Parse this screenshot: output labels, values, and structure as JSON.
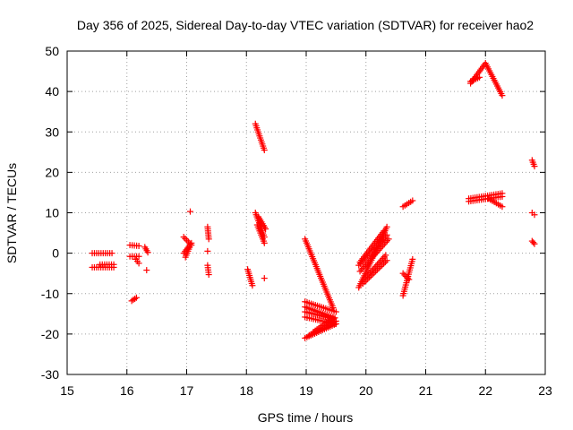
{
  "chart_data": {
    "type": "scatter",
    "title": "Day 356 of 2025, Sidereal Day-to-day VTEC variation (SDTVAR) for receiver hao2",
    "xlabel": "GPS time / hours",
    "ylabel": "SDTVAR / TECUs",
    "xlim": [
      15,
      23
    ],
    "ylim": [
      -30,
      50
    ],
    "xticks": [
      "15",
      "16",
      "17",
      "18",
      "19",
      "20",
      "21",
      "22",
      "23"
    ],
    "yticks": [
      "50",
      "40",
      "30",
      "20",
      "10",
      "0",
      "-10",
      "-20",
      "-30"
    ],
    "grid": true,
    "marker": "+",
    "color": "#ff0000",
    "segments": [
      {
        "x": [
          15.42,
          15.75
        ],
        "y": [
          0.0,
          0.0
        ]
      },
      {
        "x": [
          15.42,
          15.78
        ],
        "y": [
          -3.5,
          -3.5
        ]
      },
      {
        "x": [
          15.55,
          15.78
        ],
        "y": [
          -2.8,
          -2.8
        ]
      },
      {
        "x": [
          16.05,
          16.2
        ],
        "y": [
          2.0,
          1.8
        ]
      },
      {
        "x": [
          16.05,
          16.2
        ],
        "y": [
          -0.8,
          -0.8
        ]
      },
      {
        "x": [
          16.15,
          16.2
        ],
        "y": [
          -1.5,
          -2.5
        ]
      },
      {
        "x": [
          16.3,
          16.35
        ],
        "y": [
          1.5,
          0.2
        ]
      },
      {
        "x": [
          16.33
        ],
        "y": [
          -4.2
        ]
      },
      {
        "x": [
          16.08,
          16.16
        ],
        "y": [
          -11.8,
          -11.0
        ]
      },
      {
        "x": [
          16.95,
          17.08
        ],
        "y": [
          4.0,
          2.0
        ]
      },
      {
        "x": [
          16.95,
          17.08
        ],
        "y": [
          0.0,
          2.5
        ]
      },
      {
        "x": [
          16.98,
          17.05
        ],
        "y": [
          -1.0,
          1.5
        ]
      },
      {
        "x": [
          17.06
        ],
        "y": [
          10.3
        ]
      },
      {
        "x": [
          17.35,
          17.37
        ],
        "y": [
          6.5,
          3.5
        ]
      },
      {
        "x": [
          17.35
        ],
        "y": [
          0.5
        ]
      },
      {
        "x": [
          17.35,
          17.37
        ],
        "y": [
          -3.0,
          -5.3
        ]
      },
      {
        "x": [
          18.02,
          18.1
        ],
        "y": [
          -4.0,
          -8.0
        ]
      },
      {
        "x": [
          18.15,
          18.3
        ],
        "y": [
          32.0,
          25.5
        ]
      },
      {
        "x": [
          18.15,
          18.3
        ],
        "y": [
          10.0,
          4.0
        ]
      },
      {
        "x": [
          18.2,
          18.32
        ],
        "y": [
          9.0,
          6.0
        ]
      },
      {
        "x": [
          18.18,
          18.3
        ],
        "y": [
          7.0,
          2.5
        ]
      },
      {
        "x": [
          18.3
        ],
        "y": [
          -6.2
        ]
      },
      {
        "x": [
          18.98,
          19.45
        ],
        "y": [
          3.5,
          -13.5
        ]
      },
      {
        "x": [
          18.98,
          19.5
        ],
        "y": [
          -12.0,
          -14.5
        ]
      },
      {
        "x": [
          18.98,
          19.48
        ],
        "y": [
          -13.3,
          -16.0
        ]
      },
      {
        "x": [
          18.98,
          19.46
        ],
        "y": [
          -14.5,
          -16.3
        ]
      },
      {
        "x": [
          18.98,
          19.48
        ],
        "y": [
          -15.8,
          -17.5
        ]
      },
      {
        "x": [
          18.98,
          19.5
        ],
        "y": [
          -21.0,
          -17.5
        ]
      },
      {
        "x": [
          19.05,
          19.5
        ],
        "y": [
          -20.3,
          -16.8
        ]
      },
      {
        "x": [
          19.12,
          19.45
        ],
        "y": [
          -19.5,
          -16.0
        ]
      },
      {
        "x": [
          19.88,
          20.35
        ],
        "y": [
          -8.5,
          6.5
        ]
      },
      {
        "x": [
          19.88,
          20.35
        ],
        "y": [
          -3.0,
          4.5
        ]
      },
      {
        "x": [
          19.9,
          20.3
        ],
        "y": [
          -2.2,
          5.5
        ]
      },
      {
        "x": [
          19.9,
          20.38
        ],
        "y": [
          -4.5,
          3.5
        ]
      },
      {
        "x": [
          19.95,
          20.35
        ],
        "y": [
          -7.5,
          -1.8
        ]
      },
      {
        "x": [
          20.0,
          20.33
        ],
        "y": [
          -6.0,
          -0.5
        ]
      },
      {
        "x": [
          20.62,
          20.78
        ],
        "y": [
          11.5,
          13.0
        ]
      },
      {
        "x": [
          20.62,
          20.78
        ],
        "y": [
          -10.5,
          -1.5
        ]
      },
      {
        "x": [
          20.62,
          20.72
        ],
        "y": [
          -5.0,
          -6.5
        ]
      },
      {
        "x": [
          21.72,
          22.28
        ],
        "y": [
          13.5,
          14.8
        ]
      },
      {
        "x": [
          21.72,
          22.28
        ],
        "y": [
          12.8,
          14.0
        ]
      },
      {
        "x": [
          22.05,
          22.28
        ],
        "y": [
          13.5,
          11.5
        ]
      },
      {
        "x": [
          21.75,
          22.0,
          22.28
        ],
        "y": [
          42.0,
          47.0,
          39.0
        ]
      },
      {
        "x": [
          21.75,
          21.9
        ],
        "y": [
          42.5,
          43.5
        ]
      },
      {
        "x": [
          22.78,
          22.82
        ],
        "y": [
          23.0,
          21.5
        ]
      },
      {
        "x": [
          22.78,
          22.82
        ],
        "y": [
          10.0,
          9.5
        ]
      },
      {
        "x": [
          22.78,
          22.82
        ],
        "y": [
          3.0,
          2.3
        ]
      }
    ]
  }
}
